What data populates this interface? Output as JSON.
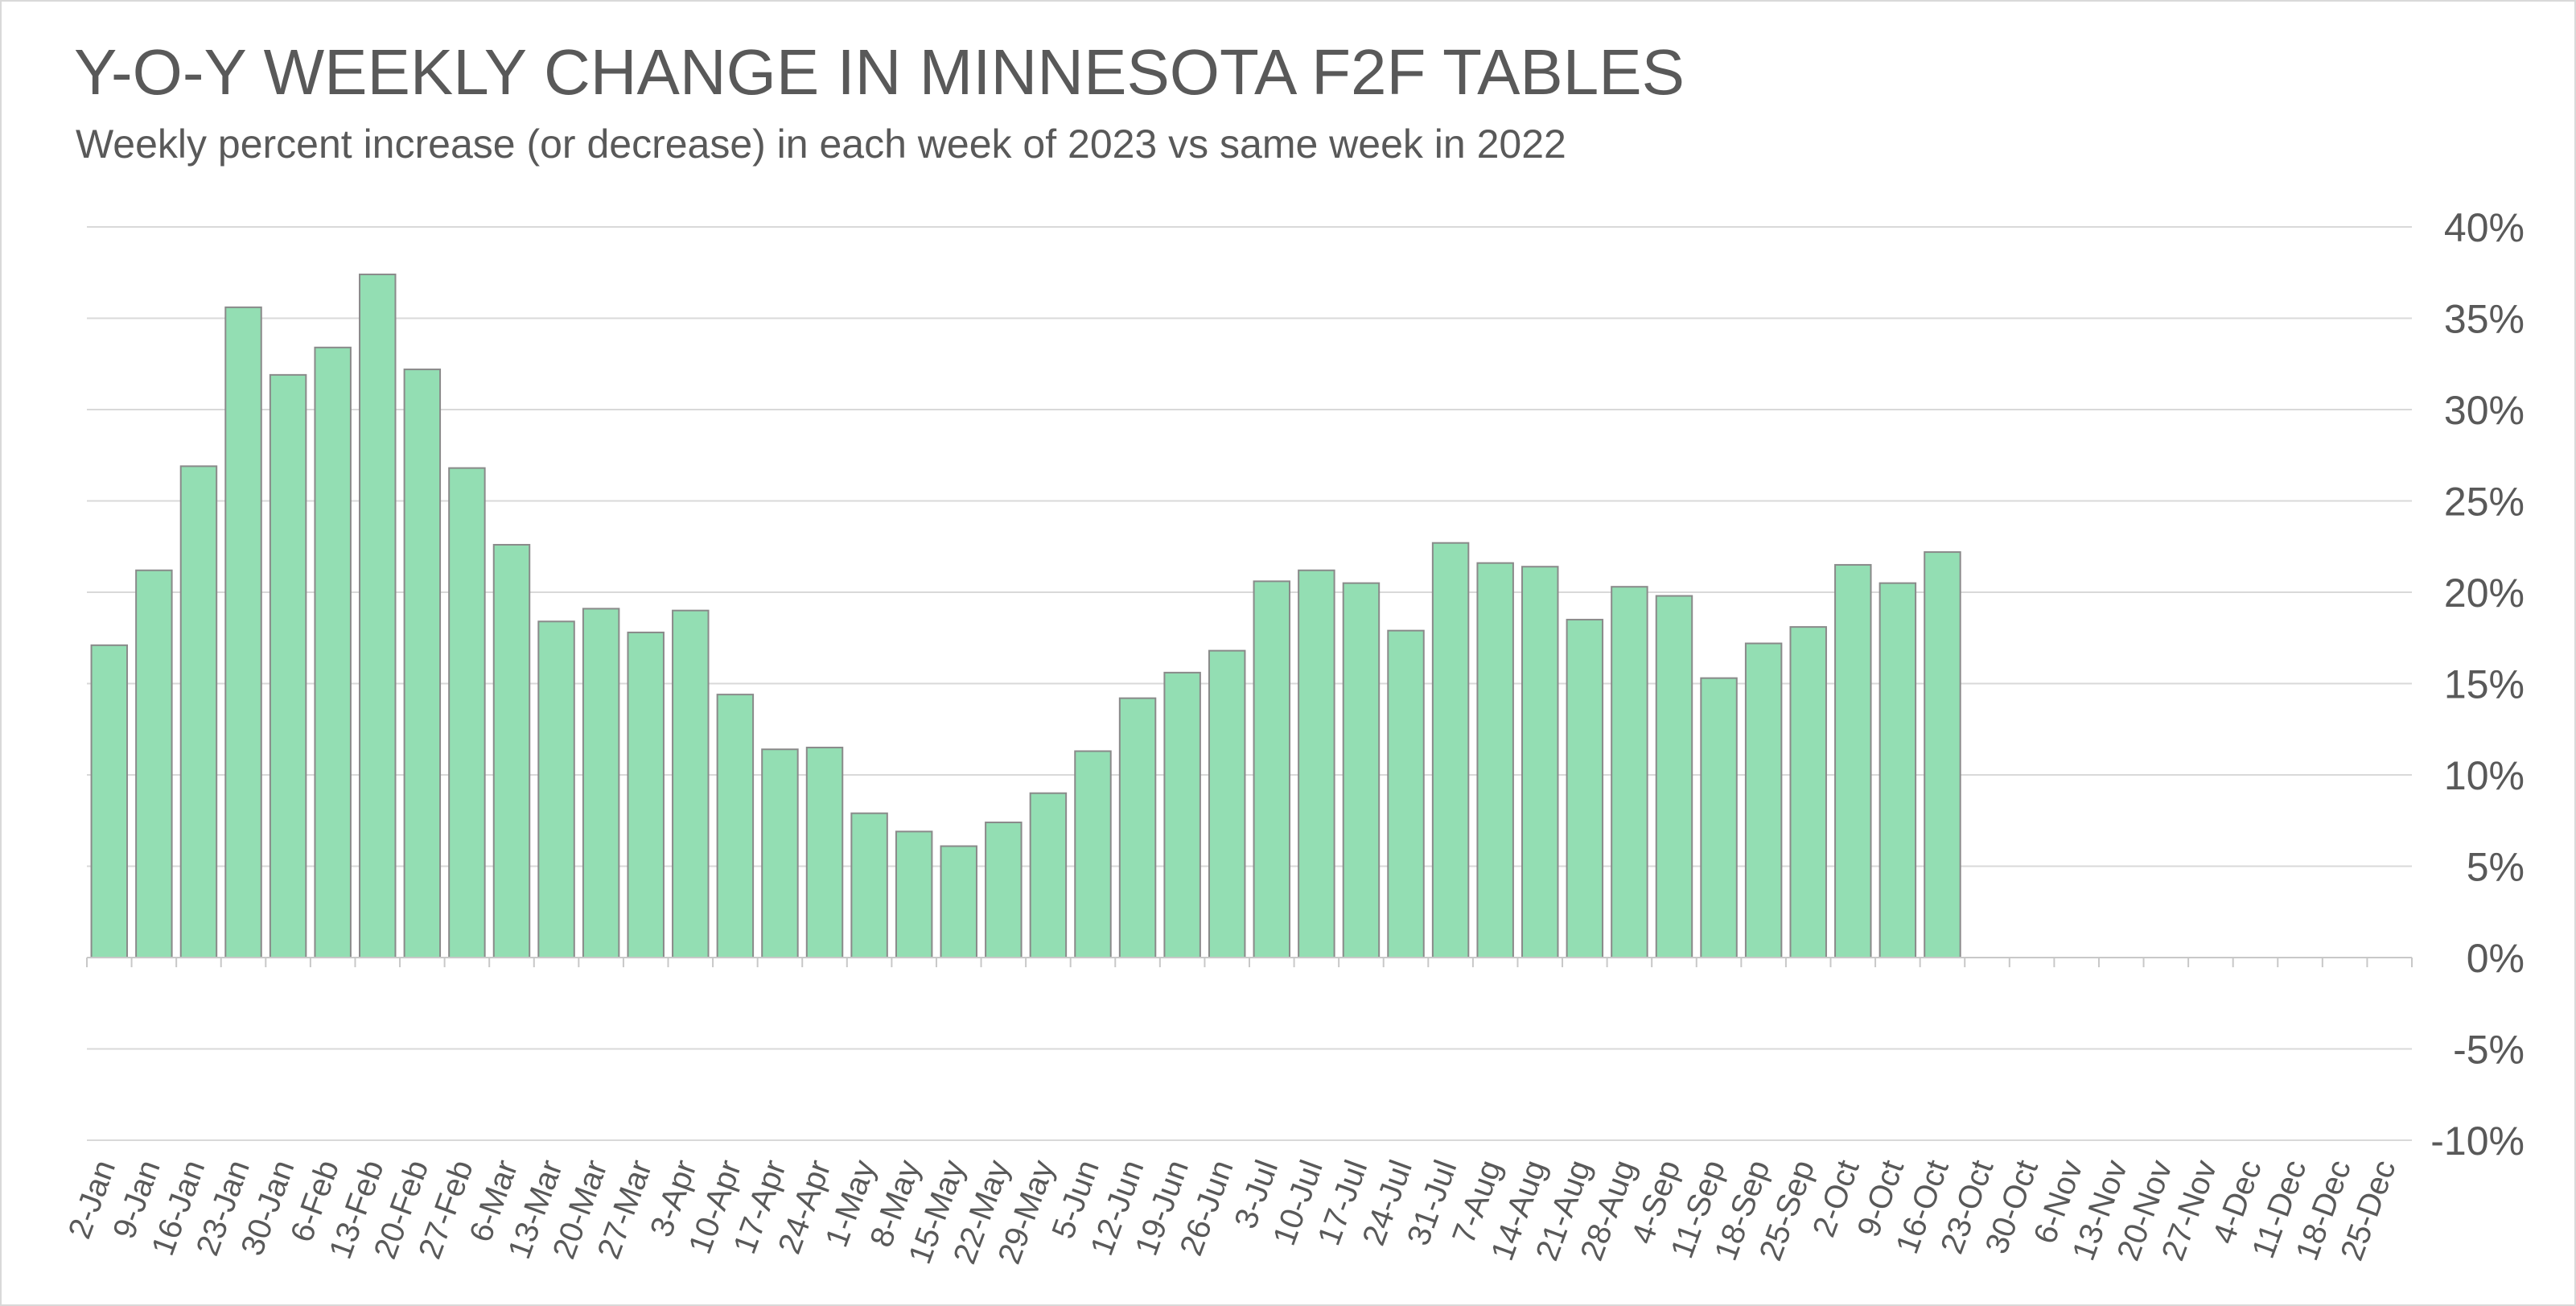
{
  "chart_data": {
    "type": "bar",
    "title": "Y-O-Y WEEKLY CHANGE IN MINNESOTA F2F TABLES",
    "subtitle": "Weekly percent increase (or decrease) in each week of 2023 vs same week in 2022",
    "xlabel": "",
    "ylabel": "",
    "ylim": [
      -10,
      40
    ],
    "yticks": [
      "40%",
      "35%",
      "30%",
      "25%",
      "20%",
      "15%",
      "10%",
      "5%",
      "0%",
      "-5%",
      "-10%"
    ],
    "ytick_values": [
      40,
      35,
      30,
      25,
      20,
      15,
      10,
      5,
      0,
      -5,
      -10
    ],
    "grid": true,
    "bar_color": "#93DEB3",
    "bar_edge_color": "#8a8a8a",
    "categories": [
      "2-Jan",
      "9-Jan",
      "16-Jan",
      "23-Jan",
      "30-Jan",
      "6-Feb",
      "13-Feb",
      "20-Feb",
      "27-Feb",
      "6-Mar",
      "13-Mar",
      "20-Mar",
      "27-Mar",
      "3-Apr",
      "10-Apr",
      "17-Apr",
      "24-Apr",
      "1-May",
      "8-May",
      "15-May",
      "22-May",
      "29-May",
      "5-Jun",
      "12-Jun",
      "19-Jun",
      "26-Jun",
      "3-Jul",
      "10-Jul",
      "17-Jul",
      "24-Jul",
      "31-Jul",
      "7-Aug",
      "14-Aug",
      "21-Aug",
      "28-Aug",
      "4-Sep",
      "11-Sep",
      "18-Sep",
      "25-Sep",
      "2-Oct",
      "9-Oct",
      "16-Oct",
      "23-Oct",
      "30-Oct",
      "6-Nov",
      "13-Nov",
      "20-Nov",
      "27-Nov",
      "4-Dec",
      "11-Dec",
      "18-Dec",
      "25-Dec"
    ],
    "values": [
      17.1,
      21.2,
      26.9,
      35.6,
      31.9,
      33.4,
      37.4,
      32.2,
      26.8,
      22.6,
      18.4,
      19.1,
      17.8,
      19.0,
      14.4,
      11.4,
      11.5,
      7.9,
      6.9,
      6.1,
      7.4,
      9.0,
      11.3,
      14.2,
      15.6,
      16.8,
      20.6,
      21.2,
      20.5,
      17.9,
      22.7,
      21.6,
      21.4,
      18.5,
      20.3,
      19.8,
      15.3,
      17.2,
      18.1,
      21.5,
      20.5,
      22.2,
      null,
      null,
      null,
      null,
      null,
      null,
      null,
      null,
      null,
      null
    ]
  }
}
